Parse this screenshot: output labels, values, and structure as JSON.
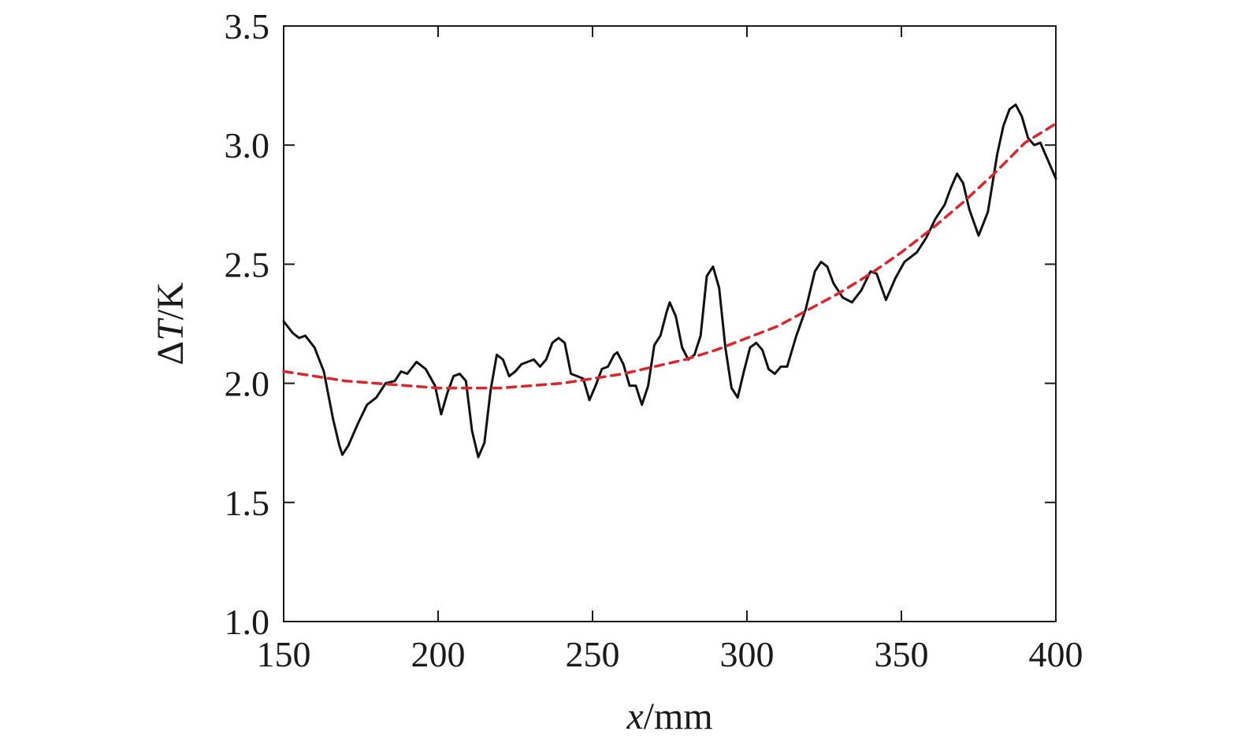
{
  "chart_data": {
    "type": "line",
    "title": "",
    "xlabel_var": "x",
    "xlabel_unit": "/mm",
    "ylabel_prefix": "Δ",
    "ylabel_var": "T",
    "ylabel_unit": "/K",
    "xlim": [
      150,
      400
    ],
    "ylim": [
      1.0,
      3.5
    ],
    "xticks": [
      150,
      200,
      250,
      300,
      350,
      400
    ],
    "xtick_labels": [
      "150",
      "200",
      "250",
      "300",
      "350",
      "400"
    ],
    "yticks": [
      1.0,
      1.5,
      2.0,
      2.5,
      3.0,
      3.5
    ],
    "ytick_labels": [
      "1.0",
      "1.5",
      "2.0",
      "2.5",
      "3.0",
      "3.5"
    ],
    "grid": false,
    "legend": "none",
    "series": [
      {
        "style": "solid",
        "color": "#111111",
        "x": [
          150,
          153,
          155,
          157,
          160,
          163,
          166,
          168,
          169,
          171,
          174,
          177,
          180,
          183,
          186,
          188,
          190,
          193,
          196,
          199,
          201,
          203,
          205,
          207,
          209,
          211,
          213,
          215,
          217,
          219,
          221,
          223,
          225,
          227,
          229,
          231,
          233,
          235,
          237,
          239,
          241,
          243,
          245,
          247,
          249,
          251,
          253,
          255,
          257,
          258,
          260,
          262,
          264,
          266,
          268,
          270,
          272,
          274,
          275,
          277,
          279,
          281,
          283,
          285,
          287,
          289,
          291,
          293,
          295,
          297,
          299,
          301,
          303,
          305,
          307,
          309,
          311,
          313,
          316,
          319,
          322,
          324,
          326,
          328,
          331,
          334,
          337,
          340,
          342,
          345,
          348,
          351,
          355,
          358,
          361,
          364,
          366,
          368,
          370,
          372,
          375,
          378,
          381,
          383,
          385,
          387,
          389,
          391,
          393,
          395,
          397,
          400
        ],
        "y": [
          2.26,
          2.21,
          2.19,
          2.2,
          2.15,
          2.05,
          1.85,
          1.74,
          1.7,
          1.74,
          1.83,
          1.91,
          1.94,
          2.0,
          2.01,
          2.05,
          2.04,
          2.09,
          2.06,
          1.99,
          1.87,
          1.96,
          2.03,
          2.04,
          2.01,
          1.8,
          1.69,
          1.75,
          1.97,
          2.12,
          2.1,
          2.03,
          2.05,
          2.08,
          2.09,
          2.1,
          2.07,
          2.1,
          2.17,
          2.19,
          2.17,
          2.04,
          2.03,
          2.02,
          1.93,
          1.99,
          2.06,
          2.07,
          2.12,
          2.13,
          2.08,
          1.99,
          1.99,
          1.91,
          1.99,
          2.16,
          2.2,
          2.3,
          2.34,
          2.28,
          2.15,
          2.1,
          2.12,
          2.2,
          2.45,
          2.49,
          2.4,
          2.15,
          1.98,
          1.94,
          2.05,
          2.15,
          2.17,
          2.14,
          2.06,
          2.04,
          2.07,
          2.07,
          2.2,
          2.31,
          2.47,
          2.51,
          2.49,
          2.42,
          2.36,
          2.34,
          2.39,
          2.47,
          2.46,
          2.35,
          2.44,
          2.51,
          2.55,
          2.61,
          2.69,
          2.75,
          2.82,
          2.88,
          2.84,
          2.73,
          2.62,
          2.72,
          2.96,
          3.08,
          3.15,
          3.17,
          3.12,
          3.03,
          3.0,
          3.01,
          2.95,
          2.86
        ]
      },
      {
        "style": "dashed",
        "color": "#d9262c",
        "x": [
          150,
          160,
          170,
          180,
          190,
          200,
          210,
          220,
          230,
          240,
          250,
          260,
          270,
          280,
          290,
          300,
          310,
          320,
          330,
          340,
          350,
          360,
          370,
          380,
          390,
          400
        ],
        "y": [
          2.05,
          2.03,
          2.01,
          2.0,
          1.99,
          1.98,
          1.98,
          1.98,
          1.99,
          2.0,
          2.02,
          2.04,
          2.07,
          2.1,
          2.14,
          2.19,
          2.24,
          2.31,
          2.38,
          2.46,
          2.55,
          2.65,
          2.76,
          2.88,
          3.01,
          3.09
        ]
      }
    ]
  }
}
